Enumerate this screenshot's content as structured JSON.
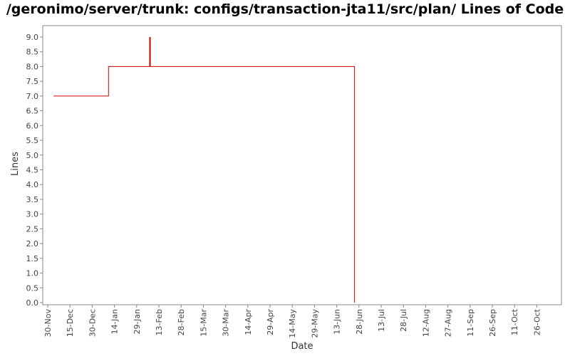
{
  "chart_data": {
    "type": "line",
    "title": "/geronimo/server/trunk: configs/transaction-jta11/src/plan/ Lines of Code",
    "xlabel": "Date",
    "ylabel": "Lines",
    "ylim": [
      0.0,
      9.4
    ],
    "y_ticks": [
      "0.0",
      "0.5",
      "1.0",
      "1.5",
      "2.0",
      "2.5",
      "3.0",
      "3.5",
      "4.0",
      "4.5",
      "5.0",
      "5.5",
      "6.0",
      "6.5",
      "7.0",
      "7.5",
      "8.0",
      "8.5",
      "9.0"
    ],
    "x_ticks": [
      "30-Nov",
      "15-Dec",
      "30-Dec",
      "14-Jan",
      "29-Jan",
      "13-Feb",
      "28-Feb",
      "15-Mar",
      "30-Mar",
      "14-Apr",
      "29-Apr",
      "14-May",
      "29-May",
      "13-Jun",
      "28-Jun",
      "13-Jul",
      "28-Jul",
      "12-Aug",
      "27-Aug",
      "11-Sep",
      "26-Sep",
      "11-Oct",
      "26-Oct"
    ],
    "grid": false,
    "legend": "none",
    "series": [
      {
        "color": "#cc0000",
        "points": [
          {
            "x": "04-Dec",
            "y": 7.0
          },
          {
            "x": "10-Jan",
            "y": 7.0
          },
          {
            "x": "10-Jan",
            "y": 8.0
          },
          {
            "x": "07-Feb",
            "y": 8.0
          },
          {
            "x": "07-Feb",
            "y": 9.0
          },
          {
            "x": "07-Feb",
            "y": 8.0
          },
          {
            "x": "25-Jun",
            "y": 8.0
          },
          {
            "x": "25-Jun",
            "y": 0.0
          }
        ]
      }
    ]
  }
}
